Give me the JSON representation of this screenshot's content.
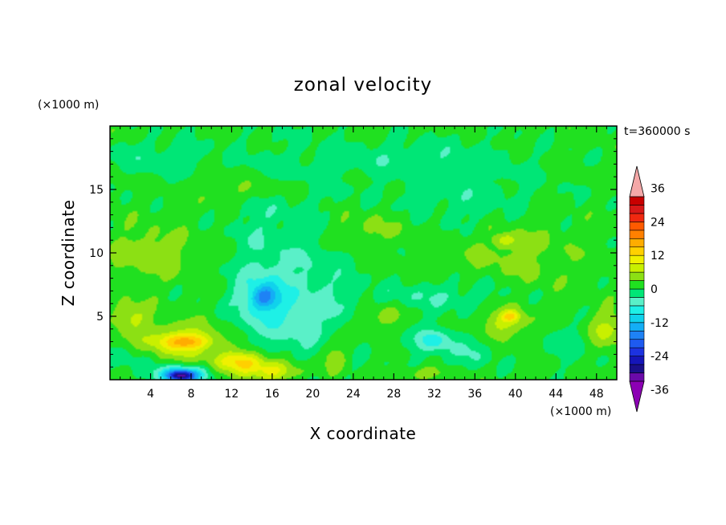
{
  "chart_data": {
    "type": "heatmap",
    "title": "zonal velocity",
    "xlabel": "X coordinate",
    "ylabel": "Z coordinate",
    "x_unit": "(×1000 m)",
    "y_unit": "(×1000 m)",
    "time_label": "t=360000 s",
    "xlim": [
      0,
      50
    ],
    "ylim": [
      0,
      20
    ],
    "x_ticks": [
      4,
      8,
      12,
      16,
      20,
      24,
      28,
      32,
      36,
      40,
      44,
      48
    ],
    "y_ticks": [
      5,
      10,
      15
    ],
    "field_background": 1,
    "features": [
      {
        "x": 4,
        "z": 10,
        "rx": 4,
        "rz": 2,
        "value": 4
      },
      {
        "x": 20,
        "z": 8,
        "rx": 4,
        "rz": 9,
        "value": -3
      },
      {
        "x": 15,
        "z": 10,
        "rx": 3,
        "rz": 7,
        "value": -3
      },
      {
        "x": 15,
        "z": 6.5,
        "rx": 2.5,
        "rz": 2,
        "value": -6
      },
      {
        "x": 15.2,
        "z": 6.5,
        "rx": 1.2,
        "rz": 0.8,
        "value": -8
      },
      {
        "x": 18,
        "z": 5,
        "rx": 5,
        "rz": 3,
        "value": -3
      },
      {
        "x": 7,
        "z": 3,
        "rx": 4,
        "rz": 1.5,
        "value": 7
      },
      {
        "x": 7.5,
        "z": 3,
        "rx": 2.5,
        "rz": 0.6,
        "value": 9
      },
      {
        "x": 13,
        "z": 1.5,
        "rx": 2.5,
        "rz": 0.8,
        "value": 11
      },
      {
        "x": 16,
        "z": 0.7,
        "rx": 3.5,
        "rz": 0.8,
        "value": 9
      },
      {
        "x": 7,
        "z": 0.4,
        "rx": 2.5,
        "rz": 0.7,
        "value": -14
      },
      {
        "x": 7,
        "z": 0.3,
        "rx": 1.2,
        "rz": 0.4,
        "value": -20
      },
      {
        "x": 2,
        "z": 5,
        "rx": 1.8,
        "rz": 1.2,
        "value": 6
      },
      {
        "x": 2,
        "z": 1.5,
        "rx": 2,
        "rz": 1,
        "value": -3
      },
      {
        "x": 22,
        "z": 2,
        "rx": 1.5,
        "rz": 1.5,
        "value": 5
      },
      {
        "x": 27,
        "z": 5,
        "rx": 2,
        "rz": 1.2,
        "value": 4
      },
      {
        "x": 32,
        "z": 3,
        "rx": 3.5,
        "rz": 1.8,
        "value": -3
      },
      {
        "x": 32,
        "z": 3.1,
        "rx": 1.5,
        "rz": 0.7,
        "value": -6
      },
      {
        "x": 36,
        "z": 2,
        "rx": 2,
        "rz": 1.2,
        "value": -3
      },
      {
        "x": 39,
        "z": 4.5,
        "rx": 2.5,
        "rz": 1.2,
        "value": 6
      },
      {
        "x": 39.5,
        "z": 5,
        "rx": 0.8,
        "rz": 0.4,
        "value": 8
      },
      {
        "x": 45,
        "z": 3,
        "rx": 2.5,
        "rz": 1.5,
        "value": -3
      },
      {
        "x": 49,
        "z": 4,
        "rx": 2,
        "rz": 1.3,
        "value": 6
      },
      {
        "x": 31,
        "z": 0.5,
        "rx": 3,
        "rz": 0.5,
        "value": 4
      },
      {
        "x": 30,
        "z": 6.5,
        "rx": 6,
        "rz": 1,
        "value": -3
      },
      {
        "x": 35,
        "z": 14,
        "rx": 8,
        "rz": 2.5,
        "value": -3
      },
      {
        "x": 14,
        "z": 15,
        "rx": 5,
        "rz": 1,
        "value": 3
      },
      {
        "x": 25,
        "z": 12,
        "rx": 6,
        "rz": 1.5,
        "value": 3
      },
      {
        "x": 30,
        "z": 17.5,
        "rx": 10,
        "rz": 1.5,
        "value": -3
      },
      {
        "x": 5,
        "z": 17.5,
        "rx": 5,
        "rz": 1.5,
        "value": -3
      },
      {
        "x": 40,
        "z": 10,
        "rx": 6,
        "rz": 3,
        "value": 3
      },
      {
        "x": 39,
        "z": 11,
        "rx": 1,
        "rz": 0.5,
        "value": 6
      },
      {
        "x": 36,
        "z": 7,
        "rx": 5,
        "rz": 1.5,
        "value": -2
      }
    ],
    "colorbar": {
      "levels": [
        -39,
        -36,
        -33,
        -30,
        -27,
        -24,
        -21,
        -18,
        -15,
        -12,
        -9,
        -6,
        -3,
        0,
        3,
        6,
        9,
        12,
        15,
        18,
        21,
        24,
        27,
        30,
        33,
        36,
        39
      ],
      "labels": [
        36,
        24,
        12,
        0,
        -12,
        -24,
        -36
      ],
      "colors": [
        "#6a0aa8",
        "#1a0f8a",
        "#1515b8",
        "#1c32e0",
        "#1e5af0",
        "#1e82f5",
        "#14aef5",
        "#10d2ec",
        "#1ef0e6",
        "#5af0c8",
        "#00e676",
        "#20e020",
        "#8ce014",
        "#c8f000",
        "#f0f000",
        "#ffd000",
        "#ffac00",
        "#ff8000",
        "#ff5a00",
        "#f02810",
        "#d81818",
        "#c80000"
      ],
      "under_color": "#8c00b4",
      "over_color": "#f4a8a8"
    }
  }
}
